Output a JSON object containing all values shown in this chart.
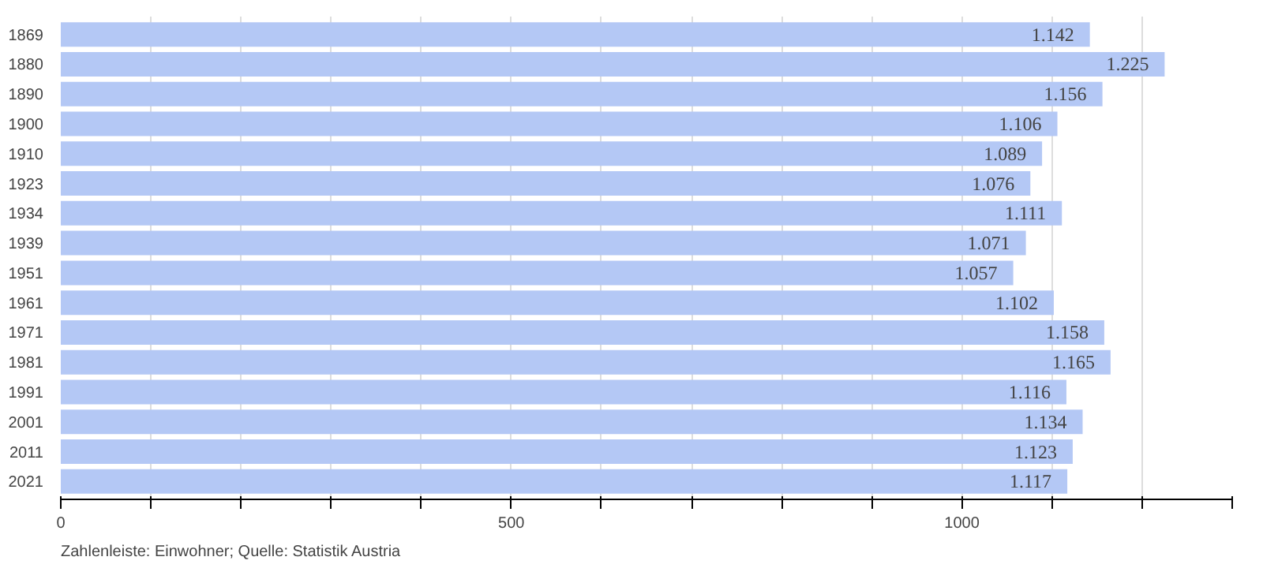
{
  "chart_data": {
    "type": "bar",
    "orientation": "horizontal",
    "categories": [
      "1869",
      "1880",
      "1890",
      "1900",
      "1910",
      "1923",
      "1934",
      "1939",
      "1951",
      "1961",
      "1971",
      "1981",
      "1991",
      "2001",
      "2011",
      "2021"
    ],
    "values": [
      1142,
      1225,
      1156,
      1106,
      1089,
      1076,
      1111,
      1071,
      1057,
      1102,
      1158,
      1165,
      1116,
      1134,
      1123,
      1117
    ],
    "value_labels": [
      "1.142",
      "1.225",
      "1.156",
      "1.106",
      "1.089",
      "1.076",
      "1.111",
      "1.071",
      "1.057",
      "1.102",
      "1.158",
      "1.165",
      "1.116",
      "1.134",
      "1.123",
      "1.117"
    ],
    "color": "#b4c8f5",
    "xlim": [
      0,
      1300
    ],
    "xticks": [
      0,
      {
        "value": 100,
        "label": null
      },
      {
        "value": 200,
        "label": null
      },
      {
        "value": 300,
        "label": null
      },
      {
        "value": 400,
        "label": null
      },
      500,
      {
        "value": 600,
        "label": null
      },
      {
        "value": 700,
        "label": null
      },
      {
        "value": 800,
        "label": null
      },
      {
        "value": 900,
        "label": null
      },
      1000,
      {
        "value": 1100,
        "label": null
      },
      {
        "value": 1200,
        "label": null
      },
      {
        "value": 1300,
        "label": null
      }
    ],
    "grid": "x",
    "annotations": [
      "Zahlenleiste: Einwohner; Quelle: Statistik Austria"
    ]
  }
}
